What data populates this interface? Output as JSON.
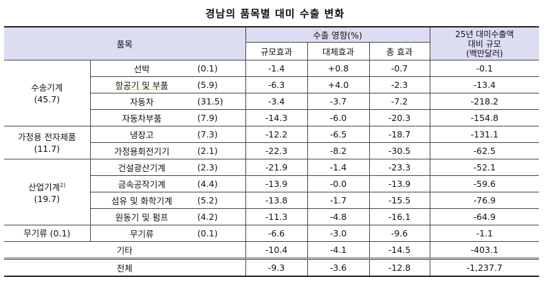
{
  "title": "경남의 품목별 대미 수출 변화",
  "header": {
    "item": "품목",
    "impact": "수출 영향(%)",
    "scale": "규모효과",
    "substitution": "대체효과",
    "total": "총 효과",
    "exports_line1": "25년 대미수출액",
    "exports_line2": "대비 규모",
    "exports_line3": "(백만달러)"
  },
  "groups": [
    {
      "name": "수송기계",
      "share": "(45.7)",
      "rows": [
        {
          "item": "선박",
          "share": "(0.1)",
          "scale": "-1.4",
          "sub": "+0.8",
          "total": "-0.7",
          "amount": "-0.1"
        },
        {
          "item": "항공기 및 부품",
          "share": "(5.9)",
          "scale": "-6.3",
          "sub": "+4.0",
          "total": "-2.3",
          "amount": "-13.4"
        },
        {
          "item": "자동차",
          "share": "(31.5)",
          "scale": "-3.4",
          "sub": "-3.7",
          "total": "-7.2",
          "amount": "-218.2"
        },
        {
          "item": "자동차부품",
          "share": "(7.9)",
          "scale": "-14.3",
          "sub": "-6.0",
          "total": "-20.3",
          "amount": "-154.8"
        }
      ]
    },
    {
      "name": "가정용 전자제품",
      "share": "(11.7)",
      "rows": [
        {
          "item": "냉장고",
          "share": "(7.3)",
          "scale": "-12.2",
          "sub": "-6.5",
          "total": "-18.7",
          "amount": "-131.1"
        },
        {
          "item": "가정용회전기기",
          "share": "(2.1)",
          "scale": "-22.3",
          "sub": "-8.2",
          "total": "-30.5",
          "amount": "-62.5"
        }
      ]
    },
    {
      "name": "산업기계",
      "note": "2)",
      "share": "(19.7)",
      "rows": [
        {
          "item": "건설광산기계",
          "share": "(2.3)",
          "scale": "-21.9",
          "sub": "-1.4",
          "total": "-23.3",
          "amount": "-52.1"
        },
        {
          "item": "금속공작기계",
          "share": "(4.4)",
          "scale": "-13.9",
          "sub": "-0.0",
          "total": "-13.9",
          "amount": "-59.6"
        },
        {
          "item": "섬유 및 화학기계",
          "share": "(5.2)",
          "scale": "-13.8",
          "sub": "-1.7",
          "total": "-15.5",
          "amount": "-76.9"
        },
        {
          "item": "원동기 및 펌프",
          "share": "(4.2)",
          "scale": "-11.3",
          "sub": "-4.8",
          "total": "-16.1",
          "amount": "-64.9"
        }
      ]
    },
    {
      "name": "무기류 (0.1)",
      "share": "",
      "rows": [
        {
          "item": "무기류",
          "share": "(0.1)",
          "scale": "-6.6",
          "sub": "-3.0",
          "total": "-9.6",
          "amount": "-1.1"
        }
      ]
    }
  ],
  "other": {
    "item": "기타",
    "scale": "-10.4",
    "sub": "-4.1",
    "total": "-14.5",
    "amount": "-403.1"
  },
  "overall": {
    "item": "전체",
    "scale": "-9.3",
    "sub": "-3.6",
    "total": "-12.8",
    "amount": "-1,237.7"
  }
}
